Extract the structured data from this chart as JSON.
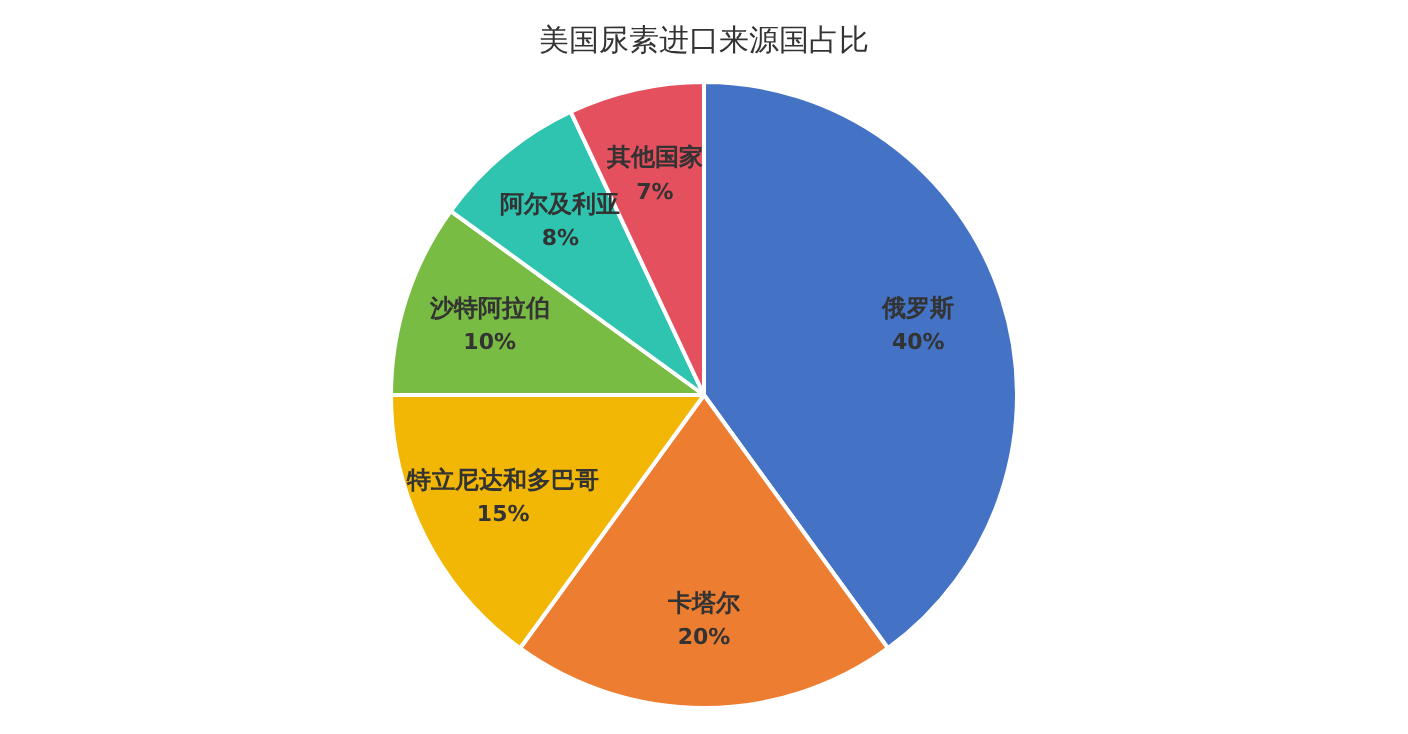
{
  "chart_data": {
    "type": "pie",
    "title": "美国尿素进口来源国占比",
    "categories": [
      "俄罗斯",
      "卡塔尔",
      "特立尼达和多巴哥",
      "沙特阿拉伯",
      "阿尔及利亚",
      "其他国家"
    ],
    "values": [
      40,
      20,
      15,
      10,
      8,
      7
    ],
    "value_labels": [
      "40%",
      "20%",
      "15%",
      "10%",
      "8%",
      "7%"
    ],
    "colors": [
      "#4472c4",
      "#ed7d31",
      "#f2b705",
      "#78bc43",
      "#2ec4b0",
      "#e5505f"
    ],
    "legend": false
  }
}
